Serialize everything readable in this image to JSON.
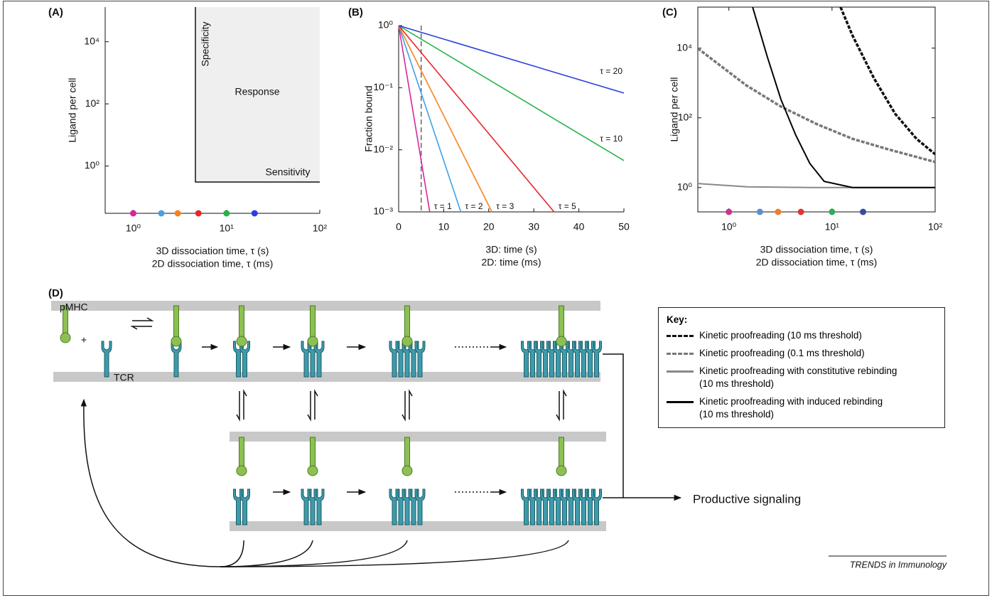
{
  "chart_data": [
    {
      "type": "scatter",
      "panel_label": "(A)",
      "xlabel": [
        "3D dissociation time, τ (s)",
        "2D dissociation time, τ (ms)"
      ],
      "ylabel": "Ligand per cell",
      "xscale": "log",
      "yscale": "log",
      "xlim": [
        0.5,
        100
      ],
      "ylim": [
        0.03,
        130000
      ],
      "xticks": [
        {
          "value": 1,
          "label": "10⁰"
        },
        {
          "value": 10,
          "label": "10¹"
        },
        {
          "value": 100,
          "label": "10²"
        }
      ],
      "yticks": [
        {
          "value": 1,
          "label": "10⁰"
        },
        {
          "value": 100,
          "label": "10²"
        },
        {
          "value": 10000,
          "label": "10⁴"
        }
      ],
      "annotations": [
        "Specificity",
        "Response",
        "Sensitivity"
      ],
      "points": {
        "x": [
          1,
          2,
          3,
          5,
          10,
          20
        ],
        "colors": [
          "#d6279b",
          "#4b9ee0",
          "#f5831f",
          "#e8262a",
          "#27b34a",
          "#2b3fe0"
        ]
      }
    },
    {
      "type": "line",
      "panel_label": "(B)",
      "xlabel": [
        "3D: time (s)",
        "2D: time (ms)"
      ],
      "ylabel": "Fraction bound",
      "yscale": "log",
      "xlim": [
        0,
        50
      ],
      "ylim": [
        0.001,
        1
      ],
      "xticks": [
        0,
        10,
        20,
        30,
        40,
        50
      ],
      "yticks": [
        {
          "value": 1,
          "label": "10⁰"
        },
        {
          "value": 0.1,
          "label": "10⁻¹"
        },
        {
          "value": 0.01,
          "label": "10⁻²"
        },
        {
          "value": 0.001,
          "label": "10⁻³"
        }
      ],
      "vline": 5,
      "series": [
        {
          "name": "τ = 1",
          "color": "#d6279b",
          "x": [
            0,
            6.9
          ],
          "values": [
            1,
            0.001
          ]
        },
        {
          "name": "τ = 2",
          "color": "#3fa0e8",
          "x": [
            0,
            13.8
          ],
          "values": [
            1,
            0.001
          ]
        },
        {
          "name": "τ = 3",
          "color": "#f5831f",
          "x": [
            0,
            20.7
          ],
          "values": [
            1,
            0.001
          ]
        },
        {
          "name": "τ = 5",
          "color": "#e8262a",
          "x": [
            0,
            34.5
          ],
          "values": [
            1,
            0.001
          ]
        },
        {
          "name": "τ = 10",
          "color": "#27b34a",
          "x": [
            0,
            50
          ],
          "values": [
            1,
            0.0067
          ]
        },
        {
          "name": "τ = 20",
          "color": "#2b3fe0",
          "x": [
            0,
            50
          ],
          "values": [
            1,
            0.082
          ]
        }
      ]
    },
    {
      "type": "line",
      "panel_label": "(C)",
      "xlabel": [
        "3D dissociation time, τ (s)",
        "2D dissociation time, τ (ms)"
      ],
      "ylabel": "Ligand per cell",
      "xscale": "log",
      "yscale": "log",
      "xlim": [
        0.5,
        100
      ],
      "ylim": [
        0.2,
        150000
      ],
      "box": true,
      "xticks": [
        {
          "value": 1,
          "label": "10⁰"
        },
        {
          "value": 10,
          "label": "10¹"
        },
        {
          "value": 100,
          "label": "10²"
        }
      ],
      "yticks": [
        {
          "value": 1,
          "label": "10⁰"
        },
        {
          "value": 100,
          "label": "10²"
        },
        {
          "value": 10000,
          "label": "10⁴"
        }
      ],
      "legend_title": "Key:",
      "series": [
        {
          "name": "Kinetic proofreading (10 ms threshold)",
          "color": "#111111",
          "linestyle": "dashed",
          "x": [
            12.1,
            15.8,
            25.5,
            41,
            66,
            100
          ],
          "values": [
            150000,
            23000,
            1370,
            130,
            25,
            9
          ]
        },
        {
          "name": "Kinetic proofreading (0.1 ms threshold)",
          "color": "#777777",
          "linestyle": "dashed",
          "x": [
            0.5,
            1.47,
            3.2,
            7.2,
            15.8,
            35,
            100
          ],
          "values": [
            9800,
            860,
            210,
            65,
            25,
            12.5,
            5.4
          ]
        },
        {
          "name": "Kinetic proofreading with constitutive rebinding\n(10 ms threshold)",
          "color": "#888888",
          "linestyle": "solid",
          "x": [
            0.5,
            1.5,
            7,
            100
          ],
          "values": [
            1.3,
            1.05,
            1,
            1
          ]
        },
        {
          "name": "Kinetic proofreading with induced rebinding\n(10 ms threshold)",
          "color": "#000000",
          "linestyle": "solid",
          "x": [
            1.7,
            2.36,
            3.2,
            4.45,
            6.1,
            8.4,
            15.8,
            100
          ],
          "values": [
            150000,
            5600,
            335,
            32,
            4.9,
            1.5,
            1,
            1
          ]
        }
      ],
      "points": {
        "x": [
          1,
          2,
          3,
          5,
          10,
          20
        ],
        "colors": [
          "#c8348f",
          "#5b8fd0",
          "#ee7f2d",
          "#e2343a",
          "#2fae55",
          "#3b4a9b"
        ]
      }
    }
  ],
  "diagram": {
    "panel_label": "(D)",
    "pmhc": "pMHC",
    "plus": "+",
    "tcr": "TCR",
    "output": "Productive signaling"
  },
  "footer": "TRENDS in Immunology"
}
